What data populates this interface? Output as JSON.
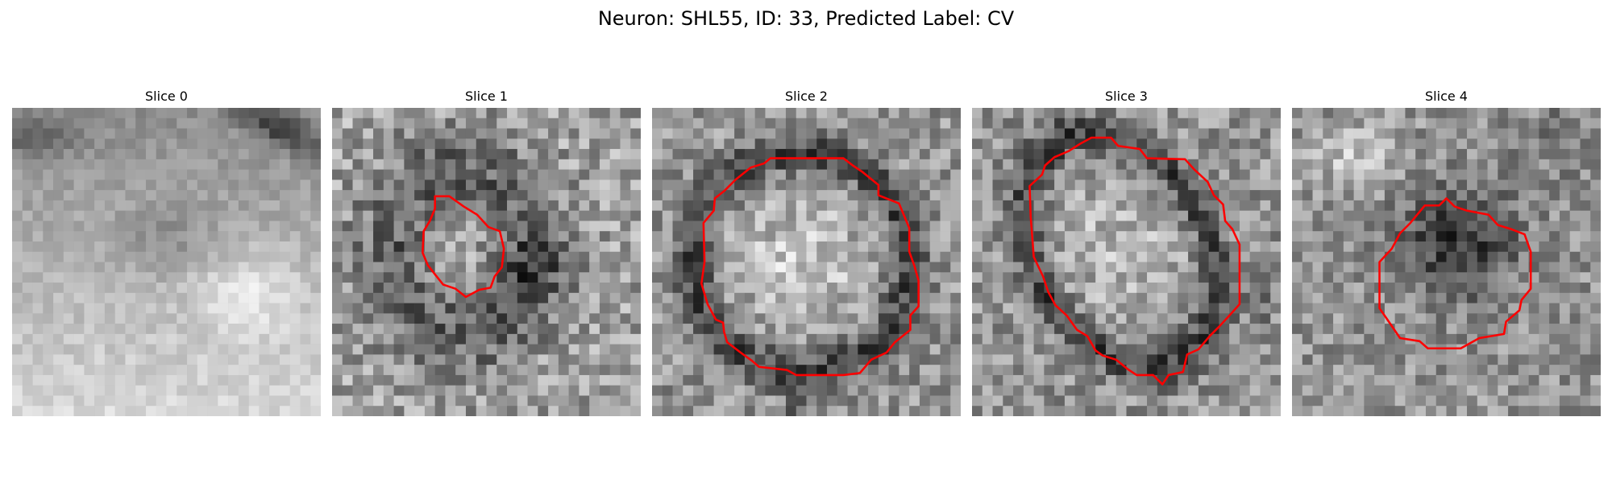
{
  "figure": {
    "title": "Neuron: SHL55, ID: 33, Predicted Label: CV"
  },
  "panels": [
    {
      "label": "Slice 0",
      "has_contour": false
    },
    {
      "label": "Slice 1",
      "has_contour": true
    },
    {
      "label": "Slice 2",
      "has_contour": true
    },
    {
      "label": "Slice 3",
      "has_contour": true
    },
    {
      "label": "Slice 4",
      "has_contour": true
    }
  ],
  "style": {
    "contour_color": "#ff0000",
    "image_colormap": "grayscale"
  }
}
